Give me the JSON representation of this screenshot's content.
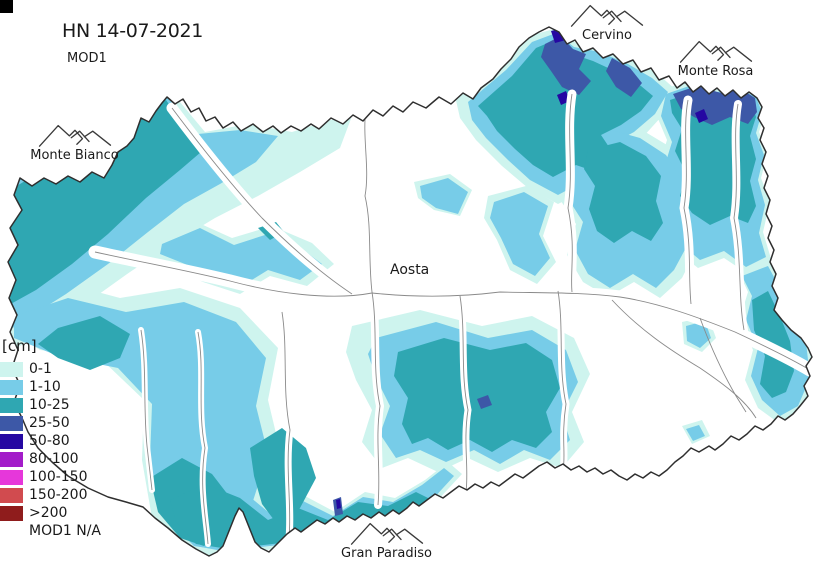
{
  "header": {
    "title": "HN 14-07-2021",
    "subtitle": "MOD1"
  },
  "corner_marker": {
    "color": "#000000"
  },
  "legend": {
    "title": "[cm]",
    "items": [
      {
        "label": "0-1",
        "color": "#cef4ee"
      },
      {
        "label": "1-10",
        "color": "#77cce8"
      },
      {
        "label": "10-25",
        "color": "#2fa7b2"
      },
      {
        "label": "25-50",
        "color": "#3d58a7"
      },
      {
        "label": "50-80",
        "color": "#2508a2"
      },
      {
        "label": "80-100",
        "color": "#a31cc9"
      },
      {
        "label": "100-150",
        "color": "#e637da"
      },
      {
        "label": "150-200",
        "color": "#d14b4f"
      },
      {
        "label": ">200",
        "color": "#8f1c1c"
      }
    ],
    "na_label": "MOD1 N/A"
  },
  "map": {
    "city_label": "Aosta",
    "peaks": [
      {
        "name": "Cervino"
      },
      {
        "name": "Monte Rosa"
      },
      {
        "name": "Monte Bianco"
      },
      {
        "name": "Gran Paradiso"
      }
    ],
    "border_color": "#2f2f2f",
    "stream_color": "#8a8a8a"
  }
}
